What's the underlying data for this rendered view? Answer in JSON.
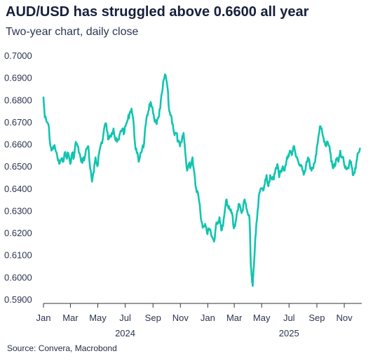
{
  "header": {
    "title": "AUD/USD has struggled above 0.6600 all year",
    "subtitle": "Two-year chart, daily close"
  },
  "footer": {
    "source": "Source: Convera, Macrobond"
  },
  "colors": {
    "line": "#12c4ae",
    "axis": "#333333",
    "text": "#1f2a44"
  },
  "chart_data": {
    "type": "line",
    "title": "AUD/USD has struggled above 0.6600 all year",
    "subtitle": "Two-year chart, daily close",
    "xlabel": "",
    "ylabel": "",
    "ylim": [
      0.59,
      0.7
    ],
    "xlim": [
      "2024-01-01",
      "2025-12-10"
    ],
    "grid": false,
    "legend": "none",
    "y_ticks": [
      "0.5900",
      "0.6000",
      "0.6100",
      "0.6200",
      "0.6300",
      "0.6400",
      "0.6500",
      "0.6600",
      "0.6700",
      "0.6800",
      "0.6900",
      "0.7000"
    ],
    "x_ticks": [
      {
        "label": "Jan",
        "date": "2024-01-01"
      },
      {
        "label": "Mar",
        "date": "2024-03-01"
      },
      {
        "label": "May",
        "date": "2024-05-01"
      },
      {
        "label": "Jul",
        "date": "2024-07-01"
      },
      {
        "label": "Sep",
        "date": "2024-09-01"
      },
      {
        "label": "Nov",
        "date": "2024-11-01"
      },
      {
        "label": "Jan",
        "date": "2025-01-01"
      },
      {
        "label": "Mar",
        "date": "2025-03-01"
      },
      {
        "label": "May",
        "date": "2025-05-01"
      },
      {
        "label": "Jul",
        "date": "2025-07-01"
      },
      {
        "label": "Sep",
        "date": "2025-09-01"
      },
      {
        "label": "Nov",
        "date": "2025-11-01"
      }
    ],
    "year_labels": [
      {
        "label": "2024",
        "date": "2024-07-01"
      },
      {
        "label": "2025",
        "date": "2025-07-01"
      }
    ],
    "series": [
      {
        "x": [
          "2024-01-01",
          "2024-01-04",
          "2024-01-08",
          "2024-01-12",
          "2024-01-16",
          "2024-01-19",
          "2024-01-23",
          "2024-01-27",
          "2024-02-01",
          "2024-02-05",
          "2024-02-09",
          "2024-02-13",
          "2024-02-17",
          "2024-02-21",
          "2024-02-25",
          "2024-03-01",
          "2024-03-05",
          "2024-03-09",
          "2024-03-13",
          "2024-03-17",
          "2024-03-21",
          "2024-03-25",
          "2024-03-29",
          "2024-04-02",
          "2024-04-06",
          "2024-04-10",
          "2024-04-14",
          "2024-04-18",
          "2024-04-22",
          "2024-04-26",
          "2024-04-30",
          "2024-05-04",
          "2024-05-08",
          "2024-05-12",
          "2024-05-16",
          "2024-05-20",
          "2024-05-24",
          "2024-05-28",
          "2024-06-01",
          "2024-06-05",
          "2024-06-09",
          "2024-06-13",
          "2024-06-17",
          "2024-06-21",
          "2024-06-25",
          "2024-06-29",
          "2024-07-03",
          "2024-07-07",
          "2024-07-11",
          "2024-07-15",
          "2024-07-19",
          "2024-07-23",
          "2024-07-27",
          "2024-07-31",
          "2024-08-04",
          "2024-08-08",
          "2024-08-12",
          "2024-08-16",
          "2024-08-20",
          "2024-08-24",
          "2024-08-28",
          "2024-09-01",
          "2024-09-05",
          "2024-09-09",
          "2024-09-13",
          "2024-09-17",
          "2024-09-21",
          "2024-09-25",
          "2024-09-29",
          "2024-10-03",
          "2024-10-07",
          "2024-10-11",
          "2024-10-15",
          "2024-10-19",
          "2024-10-23",
          "2024-10-27",
          "2024-10-31",
          "2024-11-04",
          "2024-11-08",
          "2024-11-12",
          "2024-11-16",
          "2024-11-20",
          "2024-11-24",
          "2024-11-28",
          "2024-12-02",
          "2024-12-06",
          "2024-12-10",
          "2024-12-14",
          "2024-12-18",
          "2024-12-22",
          "2024-12-26",
          "2024-12-30",
          "2025-01-03",
          "2025-01-07",
          "2025-01-11",
          "2025-01-15",
          "2025-01-19",
          "2025-01-23",
          "2025-01-27",
          "2025-01-31",
          "2025-02-04",
          "2025-02-08",
          "2025-02-12",
          "2025-02-16",
          "2025-02-20",
          "2025-02-24",
          "2025-02-28",
          "2025-03-04",
          "2025-03-08",
          "2025-03-12",
          "2025-03-16",
          "2025-03-20",
          "2025-03-24",
          "2025-03-28",
          "2025-04-01",
          "2025-04-04",
          "2025-04-07",
          "2025-04-09",
          "2025-04-11",
          "2025-04-14",
          "2025-04-18",
          "2025-04-22",
          "2025-04-26",
          "2025-04-30",
          "2025-05-04",
          "2025-05-08",
          "2025-05-12",
          "2025-05-16",
          "2025-05-20",
          "2025-05-24",
          "2025-05-28",
          "2025-06-01",
          "2025-06-05",
          "2025-06-09",
          "2025-06-13",
          "2025-06-17",
          "2025-06-21",
          "2025-06-25",
          "2025-06-29",
          "2025-07-03",
          "2025-07-07",
          "2025-07-11",
          "2025-07-15",
          "2025-07-19",
          "2025-07-23",
          "2025-07-27",
          "2025-07-31",
          "2025-08-04",
          "2025-08-08",
          "2025-08-12",
          "2025-08-16",
          "2025-08-20",
          "2025-08-24",
          "2025-08-28",
          "2025-09-01",
          "2025-09-05",
          "2025-09-09",
          "2025-09-13",
          "2025-09-17",
          "2025-09-21",
          "2025-09-25",
          "2025-09-29",
          "2025-10-03",
          "2025-10-07",
          "2025-10-11",
          "2025-10-15",
          "2025-10-19",
          "2025-10-23",
          "2025-10-27",
          "2025-10-31",
          "2025-11-04",
          "2025-11-08",
          "2025-11-12",
          "2025-11-16",
          "2025-11-20",
          "2025-11-24",
          "2025-11-28",
          "2025-12-02",
          "2025-12-06"
        ],
        "values": [
          0.681,
          0.672,
          0.67,
          0.669,
          0.66,
          0.657,
          0.659,
          0.658,
          0.654,
          0.651,
          0.653,
          0.652,
          0.656,
          0.654,
          0.656,
          0.651,
          0.656,
          0.654,
          0.661,
          0.659,
          0.656,
          0.652,
          0.653,
          0.654,
          0.658,
          0.659,
          0.649,
          0.643,
          0.647,
          0.654,
          0.65,
          0.656,
          0.66,
          0.662,
          0.668,
          0.669,
          0.662,
          0.664,
          0.665,
          0.667,
          0.662,
          0.661,
          0.662,
          0.666,
          0.667,
          0.665,
          0.669,
          0.671,
          0.674,
          0.676,
          0.671,
          0.66,
          0.656,
          0.652,
          0.656,
          0.658,
          0.66,
          0.669,
          0.673,
          0.678,
          0.678,
          0.674,
          0.67,
          0.669,
          0.672,
          0.676,
          0.683,
          0.689,
          0.691,
          0.686,
          0.675,
          0.673,
          0.669,
          0.664,
          0.665,
          0.661,
          0.659,
          0.661,
          0.665,
          0.656,
          0.648,
          0.651,
          0.65,
          0.654,
          0.647,
          0.64,
          0.638,
          0.633,
          0.625,
          0.623,
          0.624,
          0.62,
          0.622,
          0.621,
          0.618,
          0.616,
          0.623,
          0.624,
          0.627,
          0.621,
          0.623,
          0.63,
          0.635,
          0.631,
          0.63,
          0.629,
          0.622,
          0.625,
          0.63,
          0.633,
          0.63,
          0.63,
          0.635,
          0.631,
          0.628,
          0.626,
          0.605,
          0.6,
          0.596,
          0.606,
          0.62,
          0.63,
          0.638,
          0.64,
          0.639,
          0.642,
          0.646,
          0.641,
          0.646,
          0.644,
          0.644,
          0.649,
          0.651,
          0.645,
          0.648,
          0.65,
          0.648,
          0.652,
          0.655,
          0.657,
          0.655,
          0.659,
          0.656,
          0.654,
          0.651,
          0.65,
          0.648,
          0.647,
          0.651,
          0.654,
          0.651,
          0.648,
          0.649,
          0.652,
          0.659,
          0.664,
          0.668,
          0.665,
          0.661,
          0.659,
          0.661,
          0.659,
          0.652,
          0.649,
          0.65,
          0.653,
          0.652,
          0.657,
          0.654,
          0.652,
          0.65,
          0.649,
          0.651,
          0.652,
          0.646,
          0.647,
          0.652,
          0.656,
          0.658
        ]
      }
    ]
  }
}
